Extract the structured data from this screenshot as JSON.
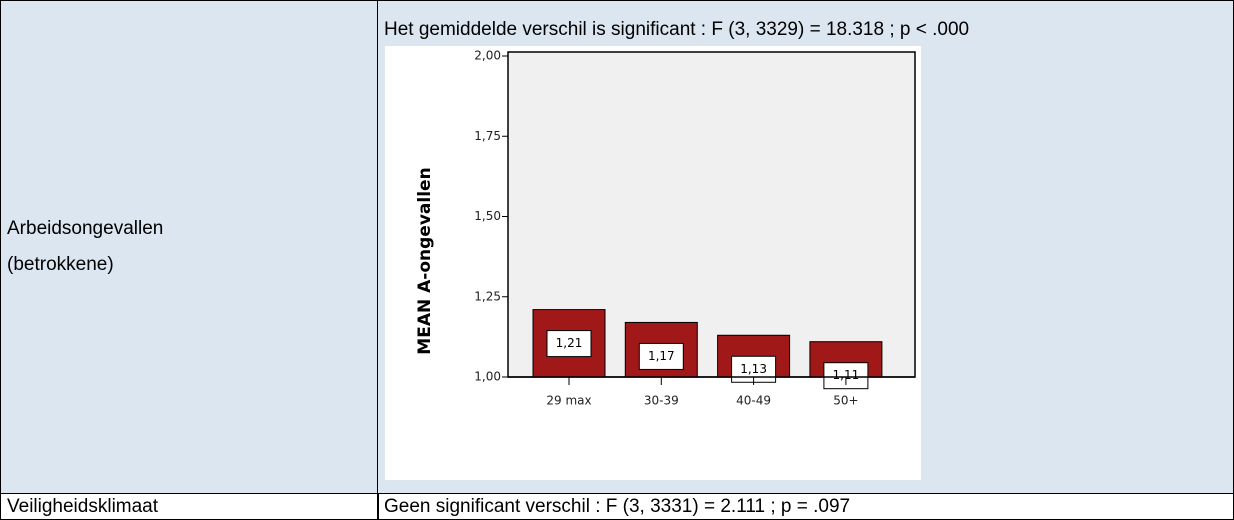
{
  "table": {
    "rows": [
      {
        "label": [
          "Arbeidsongevallen",
          "(betrokkene)"
        ],
        "result": "Het gemiddelde verschil is significant : F (3, 3329) = 18.318 ; p < .000"
      },
      {
        "label": [
          "Veiligheidsklimaat"
        ],
        "result": "Geen significant verschil : F (3, 3331) = 2.111 ; p = .097"
      }
    ]
  },
  "chart_data": {
    "type": "bar",
    "y_label": "MEAN A-ongevallen",
    "categories": [
      "29 max",
      "30-39",
      "40-49",
      "50+"
    ],
    "values": [
      1.21,
      1.17,
      1.13,
      1.11
    ],
    "value_labels": [
      "1,21",
      "1,17",
      "1,13",
      "1,11"
    ],
    "color": "#a01818",
    "ylim": [
      1,
      2
    ],
    "yticks": [
      {
        "value": 1,
        "label": "1,00"
      },
      {
        "value": 1.25,
        "label": "1,25"
      },
      {
        "value": 1.5,
        "label": "1,50"
      },
      {
        "value": 1.75,
        "label": "1,75"
      },
      {
        "value": 2,
        "label": "2,00"
      }
    ]
  }
}
